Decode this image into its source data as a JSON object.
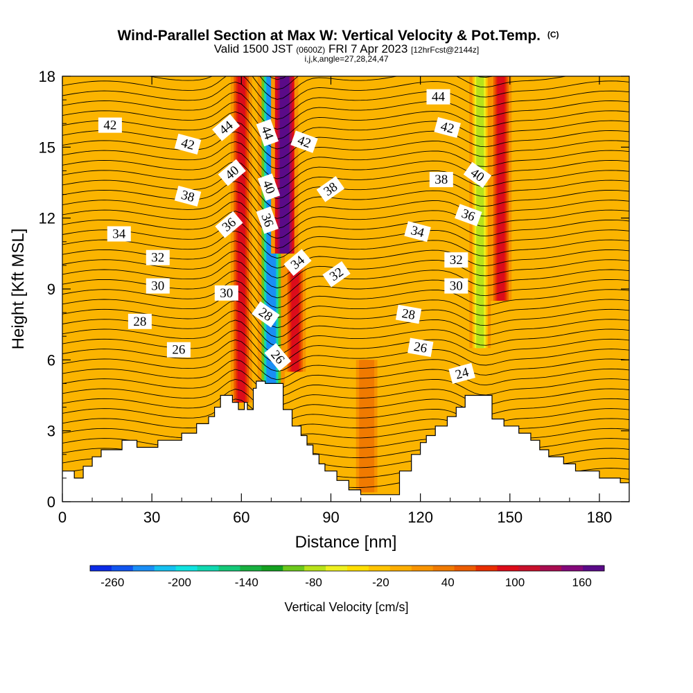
{
  "chart_data": {
    "type": "heatmap",
    "title": "Wind-Parallel Section at Max W: Vertical Velocity & Pot.Temp.",
    "title_mark": "(C)",
    "subtitle_main": "Valid 1500 JST",
    "subtitle_utc": "(0600Z)",
    "subtitle_date": "FRI 7 Apr 2023",
    "subtitle_fcst": "[12hrFcst@2144z]",
    "subtitle_index": "i,j,k,angle=27,28,24,47",
    "xlabel": "Distance [nm]",
    "ylabel": "Height [Kft MSL]",
    "xlim": [
      0,
      190
    ],
    "ylim": [
      0,
      18
    ],
    "xticks": [
      0,
      30,
      60,
      90,
      120,
      150,
      180
    ],
    "yticks": [
      0,
      3,
      6,
      9,
      12,
      15,
      18
    ],
    "colorbar": {
      "label": "Vertical Velocity [cm/s]",
      "tick_values": [
        -260,
        -200,
        -140,
        -80,
        -20,
        40,
        100,
        160
      ],
      "tick_labels": [
        "-260",
        "-200",
        "-140",
        "-80",
        "-20",
        "40",
        "100",
        "160"
      ],
      "colors": [
        "#0b2be6",
        "#1155ef",
        "#1a8ef5",
        "#15c0f0",
        "#10e2e0",
        "#10d8b0",
        "#14c878",
        "#18b040",
        "#14a020",
        "#6cc81c",
        "#b8e21a",
        "#eef020",
        "#ffde00",
        "#ffc400",
        "#fcae00",
        "#f89400",
        "#f07a00",
        "#ec5c00",
        "#e82e00",
        "#dc0c1a",
        "#c8102c",
        "#a80c50",
        "#84087a",
        "#5a0a88"
      ]
    },
    "velocity_features": [
      {
        "x": 60,
        "peak_cm_s": 100,
        "top": 18,
        "bottom": 4.2
      },
      {
        "x": 70,
        "peak_cm_s": -230,
        "top": 18,
        "bottom": 5.0
      },
      {
        "x": 74.5,
        "peak_cm_s": 170,
        "top": 18,
        "bottom": 10.5
      },
      {
        "x": 78,
        "peak_cm_s": 95,
        "top": 10,
        "bottom": 5.5
      },
      {
        "x": 140,
        "peak_cm_s": -85,
        "top": 18,
        "bottom": 6.5
      },
      {
        "x": 147,
        "peak_cm_s": 100,
        "top": 18,
        "bottom": 8.5
      },
      {
        "x": 102,
        "peak_cm_s": 45,
        "top": 6,
        "bottom": 0.4
      }
    ],
    "contour_labels": [
      {
        "text": "42",
        "x": 16,
        "y": 15.9,
        "angle": 0
      },
      {
        "text": "42",
        "x": 42,
        "y": 15.1,
        "angle": 15
      },
      {
        "text": "44",
        "x": 55,
        "y": 15.8,
        "angle": -40
      },
      {
        "text": "40",
        "x": 57,
        "y": 13.9,
        "angle": -40
      },
      {
        "text": "44",
        "x": 68.5,
        "y": 15.6,
        "angle": 70
      },
      {
        "text": "40",
        "x": 69,
        "y": 13.3,
        "angle": 70
      },
      {
        "text": "42",
        "x": 81,
        "y": 15.2,
        "angle": 20
      },
      {
        "text": "38",
        "x": 42,
        "y": 12.9,
        "angle": 15
      },
      {
        "text": "38",
        "x": 90,
        "y": 13.2,
        "angle": -35
      },
      {
        "text": "36",
        "x": 56,
        "y": 11.7,
        "angle": -40
      },
      {
        "text": "36",
        "x": 68.5,
        "y": 11.9,
        "angle": 70
      },
      {
        "text": "34",
        "x": 19,
        "y": 11.3,
        "angle": 0
      },
      {
        "text": "34",
        "x": 79,
        "y": 10.1,
        "angle": -40
      },
      {
        "text": "34",
        "x": 119,
        "y": 11.4,
        "angle": 15
      },
      {
        "text": "32",
        "x": 32,
        "y": 10.3,
        "angle": 0
      },
      {
        "text": "32",
        "x": 92,
        "y": 9.6,
        "angle": -35
      },
      {
        "text": "32",
        "x": 132,
        "y": 10.2,
        "angle": 0
      },
      {
        "text": "30",
        "x": 32,
        "y": 9.1,
        "angle": 0
      },
      {
        "text": "30",
        "x": 55,
        "y": 8.8,
        "angle": 0
      },
      {
        "text": "30",
        "x": 132,
        "y": 9.1,
        "angle": 0
      },
      {
        "text": "28",
        "x": 26,
        "y": 7.6,
        "angle": 0
      },
      {
        "text": "28",
        "x": 68,
        "y": 7.9,
        "angle": 35
      },
      {
        "text": "28",
        "x": 116,
        "y": 7.9,
        "angle": 10
      },
      {
        "text": "26",
        "x": 39,
        "y": 6.4,
        "angle": 0
      },
      {
        "text": "26",
        "x": 72,
        "y": 6.1,
        "angle": 50
      },
      {
        "text": "26",
        "x": 120,
        "y": 6.5,
        "angle": 10
      },
      {
        "text": "24",
        "x": 134,
        "y": 5.4,
        "angle": -15
      },
      {
        "text": "44",
        "x": 126,
        "y": 17.1,
        "angle": 0
      },
      {
        "text": "42",
        "x": 129,
        "y": 15.8,
        "angle": 15
      },
      {
        "text": "40",
        "x": 139,
        "y": 13.8,
        "angle": 35
      },
      {
        "text": "38",
        "x": 127,
        "y": 13.6,
        "angle": 0
      },
      {
        "text": "36",
        "x": 136,
        "y": 12.1,
        "angle": 20
      }
    ],
    "terrain_kft": [
      [
        0,
        1.3
      ],
      [
        4,
        1.3
      ],
      [
        4,
        1.0
      ],
      [
        7,
        1.0
      ],
      [
        7,
        1.5
      ],
      [
        10,
        1.5
      ],
      [
        10,
        1.9
      ],
      [
        13,
        1.9
      ],
      [
        13,
        2.2
      ],
      [
        20,
        2.2
      ],
      [
        20,
        2.6
      ],
      [
        25,
        2.6
      ],
      [
        25,
        2.3
      ],
      [
        32,
        2.3
      ],
      [
        32,
        2.6
      ],
      [
        40,
        2.6
      ],
      [
        40,
        2.9
      ],
      [
        45,
        2.9
      ],
      [
        45,
        3.3
      ],
      [
        49,
        3.3
      ],
      [
        49,
        3.6
      ],
      [
        51,
        3.6
      ],
      [
        51,
        4.0
      ],
      [
        53,
        4.0
      ],
      [
        53,
        4.5
      ],
      [
        57,
        4.5
      ],
      [
        57,
        4.2
      ],
      [
        59,
        4.2
      ],
      [
        59,
        3.9
      ],
      [
        61,
        3.9
      ],
      [
        61,
        4.2
      ],
      [
        62,
        4.2
      ],
      [
        62,
        3.9
      ],
      [
        64,
        3.9
      ],
      [
        64,
        4.8
      ],
      [
        65,
        4.8
      ],
      [
        65,
        5.1
      ],
      [
        68,
        5.1
      ],
      [
        68,
        5.0
      ],
      [
        74,
        5.0
      ],
      [
        74,
        3.9
      ],
      [
        77,
        3.9
      ],
      [
        77,
        3.2
      ],
      [
        80,
        3.2
      ],
      [
        80,
        2.8
      ],
      [
        82,
        2.8
      ],
      [
        82,
        2.4
      ],
      [
        84,
        2.4
      ],
      [
        84,
        2.0
      ],
      [
        86,
        2.0
      ],
      [
        86,
        1.6
      ],
      [
        88,
        1.6
      ],
      [
        88,
        1.3
      ],
      [
        92,
        1.3
      ],
      [
        92,
        0.9
      ],
      [
        96,
        0.9
      ],
      [
        96,
        0.5
      ],
      [
        100,
        0.5
      ],
      [
        100,
        0.3
      ],
      [
        113,
        0.3
      ],
      [
        113,
        1.3
      ],
      [
        117,
        1.3
      ],
      [
        117,
        2.0
      ],
      [
        120,
        2.0
      ],
      [
        120,
        2.5
      ],
      [
        122,
        2.5
      ],
      [
        122,
        2.8
      ],
      [
        125,
        2.8
      ],
      [
        125,
        3.2
      ],
      [
        129,
        3.2
      ],
      [
        129,
        3.6
      ],
      [
        132,
        3.6
      ],
      [
        132,
        4.0
      ],
      [
        135,
        4.0
      ],
      [
        135,
        4.5
      ],
      [
        144,
        4.5
      ],
      [
        144,
        3.5
      ],
      [
        148,
        3.5
      ],
      [
        148,
        3.2
      ],
      [
        153,
        3.2
      ],
      [
        153,
        2.9
      ],
      [
        157,
        2.9
      ],
      [
        157,
        2.6
      ],
      [
        160,
        2.6
      ],
      [
        160,
        2.2
      ],
      [
        163,
        2.2
      ],
      [
        163,
        1.9
      ],
      [
        168,
        1.9
      ],
      [
        168,
        1.6
      ],
      [
        172,
        1.6
      ],
      [
        172,
        1.3
      ],
      [
        180,
        1.3
      ],
      [
        180,
        1.0
      ],
      [
        187,
        1.0
      ],
      [
        187,
        0.8
      ],
      [
        190,
        0.8
      ],
      [
        190,
        0
      ]
    ]
  }
}
